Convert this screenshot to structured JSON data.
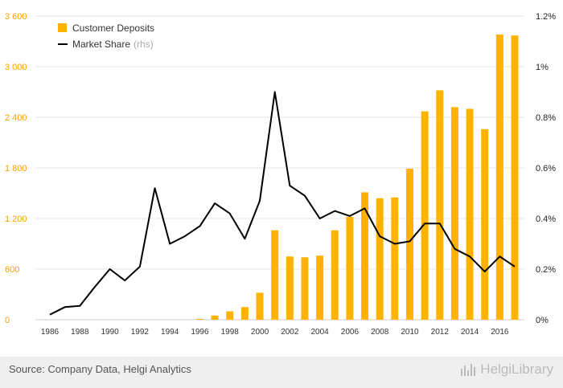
{
  "chart_data": {
    "type": "bar+line",
    "x": [
      1986,
      1987,
      1988,
      1989,
      1990,
      1991,
      1992,
      1993,
      1994,
      1995,
      1996,
      1997,
      1998,
      1999,
      2000,
      2001,
      2002,
      2003,
      2004,
      2005,
      2006,
      2007,
      2008,
      2009,
      2010,
      2011,
      2012,
      2013,
      2014,
      2015,
      2016,
      2017
    ],
    "x_tick_labels": [
      "1986",
      "1988",
      "1990",
      "1992",
      "1994",
      "1996",
      "1998",
      "2000",
      "2002",
      "2004",
      "2006",
      "2008",
      "2010",
      "2012",
      "2014",
      "2016"
    ],
    "series": [
      {
        "name": "Customer Deposits",
        "type": "bar",
        "axis": "left",
        "color": "#ffb300",
        "values": [
          0,
          0,
          0,
          0,
          0,
          0,
          0,
          0,
          0,
          0,
          10,
          50,
          100,
          150,
          320,
          1060,
          750,
          740,
          760,
          1060,
          1220,
          1510,
          1440,
          1450,
          1790,
          2470,
          2720,
          2520,
          2500,
          2260,
          3380,
          3370
        ]
      },
      {
        "name": "Market Share",
        "name_suffix": "(rhs)",
        "type": "line",
        "axis": "right",
        "color": "#000000",
        "values": [
          0.0002,
          0.0005,
          0.00055,
          0.0013,
          0.002,
          0.00155,
          0.0021,
          0.0052,
          0.003,
          0.0033,
          0.0037,
          0.0046,
          0.0042,
          0.0032,
          0.0047,
          0.009,
          0.0053,
          0.0049,
          0.004,
          0.0043,
          0.0041,
          0.0044,
          0.0033,
          0.003,
          0.0031,
          0.0038,
          0.0038,
          0.0028,
          0.0025,
          0.0019,
          0.0025,
          0.0021
        ]
      }
    ],
    "y_left": {
      "ylim": [
        0,
        3600
      ],
      "ticks": [
        0,
        600,
        1200,
        1800,
        2400,
        3000,
        3600
      ],
      "tick_labels": [
        "0",
        "600",
        "1 200",
        "1 800",
        "2 400",
        "3 000",
        "3 600"
      ],
      "tick_color": "#ffa000"
    },
    "y_right": {
      "ylim": [
        0,
        0.012
      ],
      "ticks": [
        0,
        0.002,
        0.004,
        0.006,
        0.008,
        0.01,
        0.012
      ],
      "tick_labels": [
        "0%",
        "0.2%",
        "0.4%",
        "0.6%",
        "0.8%",
        "1%",
        "1.2%"
      ]
    },
    "grid": "horizontal",
    "legend": "top-left"
  },
  "legend": {
    "deposits_label": "Customer Deposits",
    "share_label": "Market Share",
    "share_suffix": "(rhs)"
  },
  "footer": {
    "source": "Source: Company Data, Helgi Analytics",
    "brand": "HelgiLibrary"
  },
  "colors": {
    "bar": "#ffb300",
    "line": "#000000",
    "grid": "#e6e6e6",
    "footer_bg": "#efefef"
  }
}
